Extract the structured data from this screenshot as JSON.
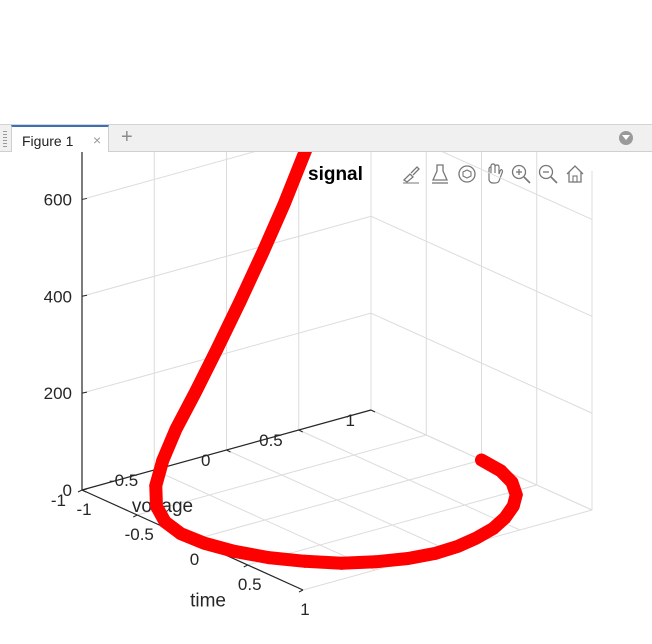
{
  "tabs": {
    "items": [
      {
        "label": "Figure 1",
        "active": true
      }
    ],
    "close_glyph": "×",
    "add_glyph": "+",
    "menu_icon": "dropdown-circle-icon"
  },
  "toolbar": {
    "icons": [
      "brush-icon",
      "data-tips-icon",
      "rotate-3d-icon",
      "pan-hand-icon",
      "zoom-in-icon",
      "zoom-out-icon",
      "home-icon"
    ]
  },
  "colors": {
    "series": "#ff0000",
    "grid": "#dcdcdc",
    "axis": "#262626",
    "accent": "#3b6fb6"
  },
  "top_partial": {
    "x_ticks": [
      "1",
      "0.5",
      "0",
      "-0.5",
      "-1"
    ],
    "y_ticks": [
      "0.5",
      "0",
      "-0.5",
      "-1"
    ],
    "xlabel": "time",
    "ylabel": "voltage"
  },
  "chart_data": {
    "type": "line",
    "title": "signal",
    "xlabel": "time",
    "ylabel": "voltage",
    "zlabel": "",
    "marker": "*",
    "x_ticks": [
      "1",
      "0.5",
      "0",
      "-0.5",
      "-1"
    ],
    "y_ticks": [
      "1",
      "0.5",
      "0",
      "-0.5",
      "-1"
    ],
    "z_ticks": [
      "0",
      "200",
      "400",
      "600"
    ],
    "xlim": [
      -1,
      1
    ],
    "ylim": [
      -1,
      1
    ],
    "zlim": [
      0,
      700
    ],
    "grid": true,
    "series": [
      {
        "x": [
          0.0,
          0.2,
          0.38,
          0.55,
          0.68,
          0.8,
          0.89,
          0.95,
          0.99,
          1.0,
          0.97,
          0.9,
          0.8,
          0.65,
          0.48,
          0.28,
          0.08,
          -0.12,
          -0.3,
          -0.47,
          -0.62,
          -0.74,
          -0.83,
          -0.89,
          -0.93,
          -0.94,
          -0.93,
          -0.9,
          -0.86,
          -0.82
        ],
        "y": [
          1.0,
          0.98,
          0.92,
          0.82,
          0.7,
          0.55,
          0.4,
          0.24,
          0.08,
          -0.08,
          -0.25,
          -0.42,
          -0.58,
          -0.72,
          -0.84,
          -0.93,
          -0.98,
          -0.99,
          -0.96,
          -0.89,
          -0.78,
          -0.64,
          -0.48,
          -0.3,
          -0.12,
          0.05,
          0.2,
          0.32,
          0.4,
          0.45
        ],
        "z": [
          0,
          0,
          0,
          0,
          0,
          0,
          0,
          0,
          0,
          0,
          0,
          0,
          0,
          0,
          0,
          0,
          0,
          0,
          3,
          12,
          30,
          58,
          100,
          155,
          225,
          310,
          400,
          490,
          570,
          630
        ]
      }
    ]
  }
}
